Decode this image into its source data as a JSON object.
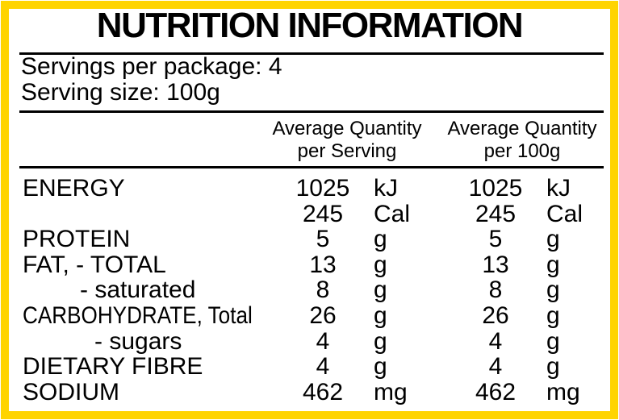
{
  "label": {
    "title": "NUTRITION INFORMATION",
    "servings_per_package": "Servings per package: 4",
    "serving_size": "Serving size: 100g"
  },
  "table": {
    "col_serving": {
      "line1": "Average Quantity",
      "line2": "per Serving"
    },
    "col_per100g": {
      "line1": "Average Quantity",
      "line2": "per 100g"
    },
    "rows": [
      {
        "label": "ENERGY",
        "serving_value": "1025",
        "serving_unit": "kJ",
        "per100g_value": "1025",
        "per100g_unit": "kJ"
      },
      {
        "label": "",
        "serving_value": "245",
        "serving_unit": "Cal",
        "per100g_value": "245",
        "per100g_unit": "Cal"
      },
      {
        "label": "PROTEIN",
        "serving_value": "5",
        "serving_unit": "g",
        "per100g_value": "5",
        "per100g_unit": "g"
      },
      {
        "label": "FAT, - TOTAL",
        "serving_value": "13",
        "serving_unit": "g",
        "per100g_value": "13",
        "per100g_unit": "g"
      },
      {
        "label": "- saturated",
        "serving_value": "8",
        "serving_unit": "g",
        "per100g_value": "8",
        "per100g_unit": "g"
      },
      {
        "label": "CARBOHYDRATE, Total",
        "serving_value": "26",
        "serving_unit": "g",
        "per100g_value": "26",
        "per100g_unit": "g"
      },
      {
        "label": "- sugars",
        "serving_value": "4",
        "serving_unit": "g",
        "per100g_value": "4",
        "per100g_unit": "g"
      },
      {
        "label": "DIETARY FIBRE",
        "serving_value": "4",
        "serving_unit": "g",
        "per100g_value": "4",
        "per100g_unit": "g"
      },
      {
        "label": "SODIUM",
        "serving_value": "462",
        "serving_unit": "mg",
        "per100g_value": "462",
        "per100g_unit": "mg"
      }
    ]
  },
  "colors": {
    "border_yellow": "#FFD400",
    "rule_black": "#000000"
  }
}
